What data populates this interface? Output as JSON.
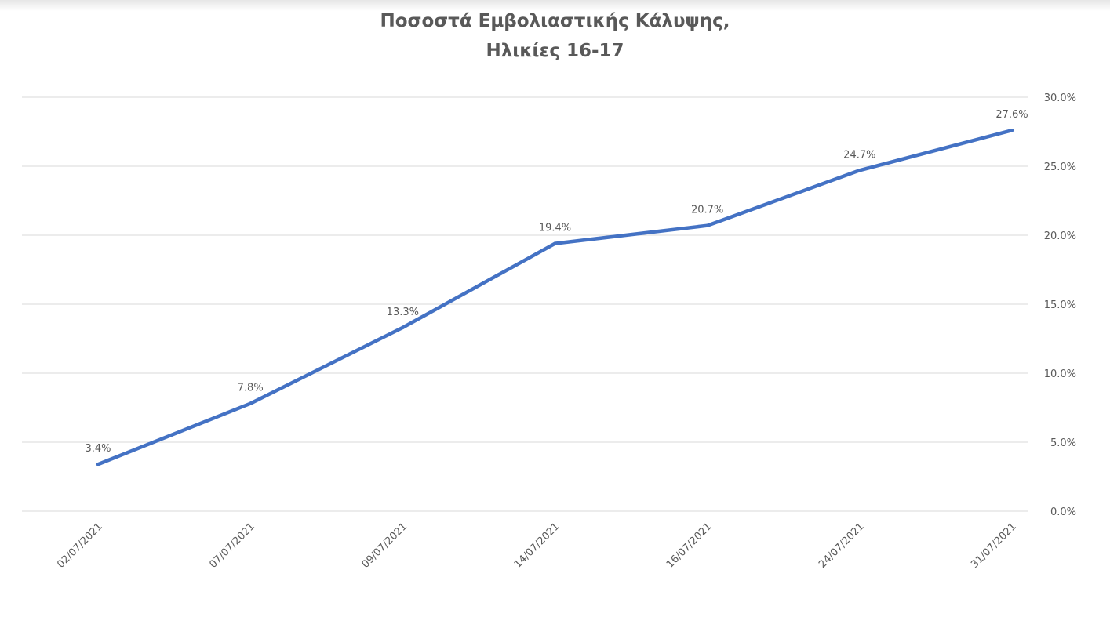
{
  "chart_data": {
    "type": "line",
    "title": [
      "Ποσοστά Εμβολιαστικής Κάλυψης,",
      "Ηλικίες 16-17"
    ],
    "categories": [
      "02/07/2021",
      "07/07/2021",
      "09/07/2021",
      "14/07/2021",
      "16/07/2021",
      "24/07/2021",
      "31/07/2021"
    ],
    "values": [
      3.4,
      7.8,
      13.3,
      19.4,
      20.7,
      24.7,
      27.6
    ],
    "data_labels": [
      "3.4%",
      "7.8%",
      "13.3%",
      "19.4%",
      "20.7%",
      "24.7%",
      "27.6%"
    ],
    "ylim": [
      0,
      30
    ],
    "y_ticks": [
      "0.0%",
      "5.0%",
      "10.0%",
      "15.0%",
      "20.0%",
      "25.0%",
      "30.0%"
    ],
    "y_axis_side": "right",
    "grid": true,
    "line_color": "#4472c4",
    "grid_color": "#d9d9d9",
    "text_color": "#595959"
  }
}
